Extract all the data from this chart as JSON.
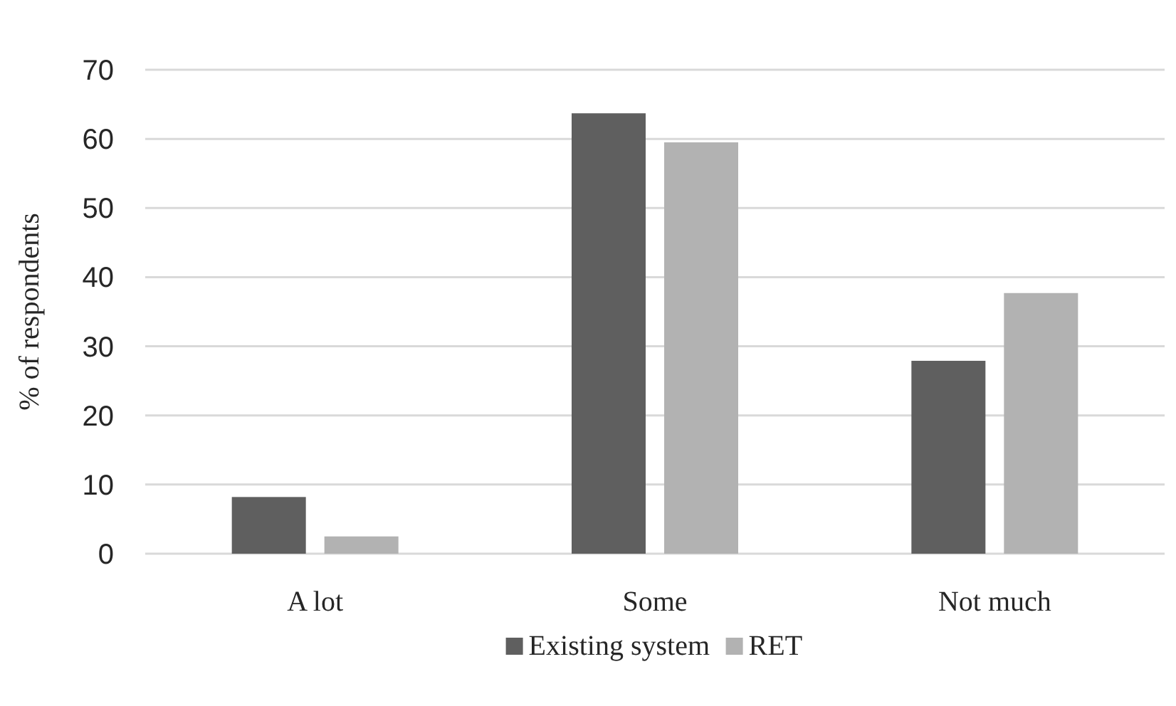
{
  "chart_data": {
    "type": "bar",
    "ylabel": "% of respondents",
    "categories": [
      "A lot",
      "Some",
      "Not much"
    ],
    "series": [
      {
        "name": "Existing system",
        "color": "#5f5f5f",
        "values": [
          8.2,
          63.7,
          27.9
        ]
      },
      {
        "name": "RET",
        "color": "#b2b2b2",
        "values": [
          2.5,
          59.5,
          37.7
        ]
      }
    ],
    "ylim": [
      0,
      70
    ],
    "yticks": [
      0,
      10,
      20,
      30,
      40,
      50,
      60,
      70
    ],
    "grid": "y",
    "legend": "bottom"
  }
}
